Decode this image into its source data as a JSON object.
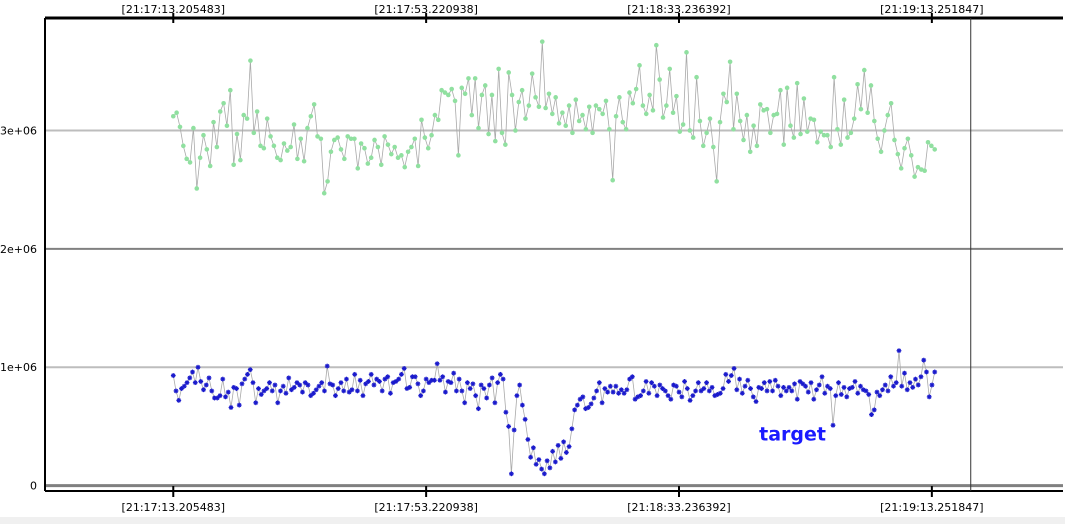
{
  "chart_data": {
    "type": "line",
    "title": "",
    "xlabel": "",
    "ylabel": "",
    "x_tick_labels": [
      "[21:17:13.205483]",
      "[21:17:53.220938]",
      "[21:18:33.236392]",
      "[21:19:13.251847]"
    ],
    "x_tick_seconds": [
      0,
      40.015,
      80.031,
      120.046
    ],
    "xlim": [
      -20.3,
      140.8
    ],
    "y_ticks": [
      0,
      1000000,
      2000000,
      3000000
    ],
    "y_tick_labels": [
      "0",
      "1e+06",
      "2e+06",
      "3e+06"
    ],
    "ylim": [
      -20000,
      3950000
    ],
    "grid": true,
    "vertical_marker_seconds": 126.2,
    "annotations": [
      {
        "text": "target",
        "x_seconds": 98,
        "y": 380000,
        "color": "#1a1aff"
      }
    ],
    "series": [
      {
        "color": "#90e0a0",
        "marker": "circle",
        "x_start": 0,
        "x_end": 120.5,
        "values": [
          3120000,
          3150000,
          3030000,
          2870000,
          2760000,
          2730000,
          3020000,
          2510000,
          2770000,
          2960000,
          2840000,
          2700000,
          3070000,
          2860000,
          3160000,
          3230000,
          3040000,
          3340000,
          2710000,
          2970000,
          2750000,
          3130000,
          3100000,
          3590000,
          2980000,
          3160000,
          2870000,
          2850000,
          3100000,
          2950000,
          2870000,
          2770000,
          2750000,
          2890000,
          2830000,
          2860000,
          3050000,
          2760000,
          2930000,
          2740000,
          3020000,
          3120000,
          3220000,
          2950000,
          2930000,
          2470000,
          2570000,
          2820000,
          2920000,
          2940000,
          2840000,
          2760000,
          2950000,
          2930000,
          2930000,
          2680000,
          2890000,
          2850000,
          2720000,
          2770000,
          2920000,
          2860000,
          2710000,
          2950000,
          2880000,
          2800000,
          2860000,
          2770000,
          2790000,
          2690000,
          2820000,
          2860000,
          2930000,
          2700000,
          3090000,
          2940000,
          2850000,
          2960000,
          3130000,
          3090000,
          3340000,
          3320000,
          3300000,
          3350000,
          3250000,
          2790000,
          3360000,
          3310000,
          3440000,
          3130000,
          3440000,
          3020000,
          3300000,
          3380000,
          2970000,
          3300000,
          2910000,
          3520000,
          2980000,
          2880000,
          3490000,
          3300000,
          3000000,
          3240000,
          3340000,
          3100000,
          3210000,
          3480000,
          3280000,
          3200000,
          3750000,
          3190000,
          3310000,
          3140000,
          3280000,
          3060000,
          3150000,
          3040000,
          3210000,
          2980000,
          3260000,
          3080000,
          3130000,
          3010000,
          3200000,
          2980000,
          3210000,
          3180000,
          3140000,
          3250000,
          3010000,
          2580000,
          3120000,
          3280000,
          3070000,
          3010000,
          3320000,
          3230000,
          3350000,
          3550000,
          3210000,
          3140000,
          3300000,
          3170000,
          3720000,
          3430000,
          3110000,
          3210000,
          3520000,
          3150000,
          3290000,
          2990000,
          3050000,
          3660000,
          3000000,
          2940000,
          3450000,
          3080000,
          2870000,
          2980000,
          3100000,
          2860000,
          2570000,
          3070000,
          3310000,
          3240000,
          3580000,
          3010000,
          3310000,
          3080000,
          2920000,
          3130000,
          2820000,
          3040000,
          2870000,
          3220000,
          3170000,
          3180000,
          2980000,
          3130000,
          3140000,
          3340000,
          2880000,
          3360000,
          3040000,
          2940000,
          3400000,
          2970000,
          3270000,
          2990000,
          3100000,
          3090000,
          2900000,
          2990000,
          2960000,
          2960000,
          2860000,
          3450000,
          3010000,
          2880000,
          3260000,
          2940000,
          2980000,
          3100000,
          3390000,
          3180000,
          3510000,
          3150000,
          3380000,
          3080000,
          2930000,
          2820000,
          3000000,
          3130000,
          3230000,
          2920000,
          2800000,
          2680000,
          2850000,
          2930000,
          2790000,
          2610000,
          2690000,
          2670000,
          2660000,
          2900000,
          2870000,
          2840000
        ]
      },
      {
        "color": "#1a1acc",
        "marker": "star",
        "x_start": 0,
        "x_end": 120.5,
        "values": [
          930000,
          800000,
          720000,
          820000,
          840000,
          870000,
          910000,
          960000,
          870000,
          1000000,
          880000,
          810000,
          850000,
          910000,
          800000,
          740000,
          740000,
          760000,
          900000,
          750000,
          790000,
          660000,
          830000,
          820000,
          680000,
          860000,
          900000,
          940000,
          980000,
          870000,
          700000,
          820000,
          770000,
          800000,
          820000,
          870000,
          800000,
          850000,
          700000,
          800000,
          840000,
          780000,
          910000,
          810000,
          830000,
          870000,
          850000,
          790000,
          870000,
          850000,
          760000,
          780000,
          810000,
          840000,
          870000,
          800000,
          1010000,
          860000,
          850000,
          760000,
          820000,
          870000,
          800000,
          900000,
          790000,
          810000,
          940000,
          800000,
          890000,
          760000,
          860000,
          880000,
          940000,
          850000,
          900000,
          880000,
          800000,
          900000,
          920000,
          780000,
          870000,
          880000,
          900000,
          940000,
          990000,
          820000,
          830000,
          920000,
          920000,
          860000,
          760000,
          800000,
          900000,
          870000,
          890000,
          890000,
          1030000,
          890000,
          920000,
          790000,
          880000,
          870000,
          950000,
          800000,
          900000,
          800000,
          700000,
          870000,
          820000,
          860000,
          760000,
          650000,
          850000,
          820000,
          740000,
          850000,
          910000,
          700000,
          870000,
          940000,
          900000,
          620000,
          500000,
          100000,
          470000,
          760000,
          850000,
          680000,
          560000,
          390000,
          240000,
          320000,
          180000,
          220000,
          140000,
          100000,
          210000,
          150000,
          290000,
          200000,
          340000,
          230000,
          370000,
          280000,
          330000,
          480000,
          640000,
          680000,
          730000,
          750000,
          650000,
          660000,
          690000,
          740000,
          800000,
          870000,
          700000,
          820000,
          790000,
          840000,
          790000,
          840000,
          780000,
          810000,
          780000,
          810000,
          900000,
          920000,
          730000,
          750000,
          760000,
          800000,
          880000,
          780000,
          870000,
          840000,
          760000,
          850000,
          820000,
          800000,
          760000,
          730000,
          850000,
          840000,
          790000,
          750000,
          880000,
          820000,
          720000,
          760000,
          800000,
          870000,
          800000,
          820000,
          870000,
          800000,
          830000,
          760000,
          770000,
          780000,
          820000,
          940000,
          880000,
          930000,
          990000,
          810000,
          900000,
          780000,
          840000,
          890000,
          820000,
          750000,
          710000,
          830000,
          820000,
          870000,
          800000,
          880000,
          800000,
          890000,
          840000,
          760000,
          830000,
          800000,
          830000,
          800000,
          860000,
          730000,
          880000,
          860000,
          840000,
          790000,
          870000,
          730000,
          810000,
          850000,
          920000,
          780000,
          840000,
          820000,
          510000,
          760000,
          870000,
          770000,
          830000,
          750000,
          820000,
          830000,
          880000,
          780000,
          840000,
          810000,
          800000,
          770000,
          600000,
          640000,
          790000,
          760000,
          810000,
          850000,
          800000,
          920000,
          840000,
          870000,
          1140000,
          840000,
          950000,
          810000,
          870000,
          830000,
          900000,
          850000,
          920000,
          1060000,
          960000,
          750000,
          850000,
          960000
        ]
      }
    ]
  }
}
